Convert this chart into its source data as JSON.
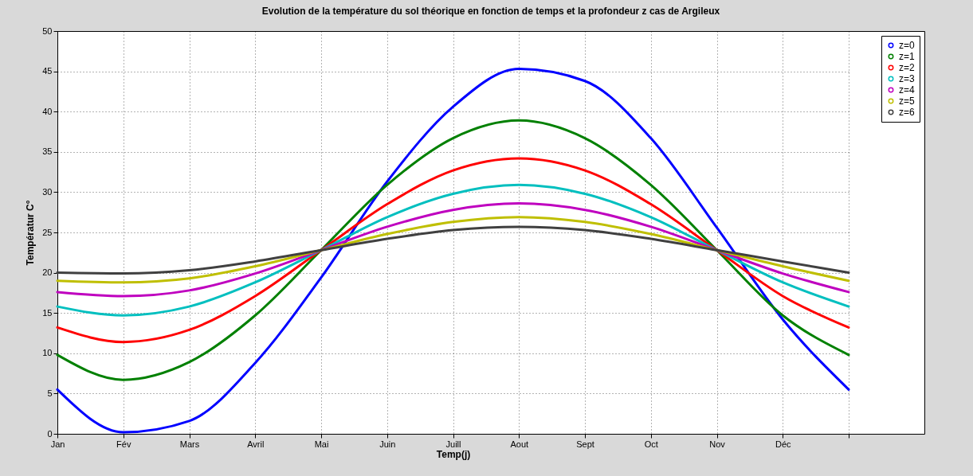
{
  "chart_data": {
    "type": "line",
    "title": "Evolution de la température du sol théorique en fonction de temps  et la profondeur  z cas de Argileux",
    "xlabel": "Temp(j)",
    "ylabel": "Températur C°",
    "categories": [
      "Jan",
      "Fév",
      "Mars",
      "Avril",
      "Mai",
      "Juin",
      "Juill",
      "Aout",
      "Sept",
      "Oct",
      "Nov",
      "Déc",
      null
    ],
    "ylim": [
      0,
      50
    ],
    "yticks": [
      0,
      5,
      10,
      15,
      20,
      25,
      30,
      35,
      40,
      45,
      50
    ],
    "grid": true,
    "legend": "top right",
    "line_style": "solid",
    "series": [
      {
        "name": "z=0",
        "color": "#0000ff",
        "values": [
          5.5,
          0.2,
          1.6,
          8.8,
          19.4,
          31.3,
          40.6,
          45.3,
          43.8,
          36.7,
          25.6,
          14.2,
          5.5
        ]
      },
      {
        "name": "z=1",
        "color": "#008000",
        "values": [
          9.8,
          6.7,
          8.9,
          14.7,
          22.8,
          30.9,
          36.7,
          38.9,
          36.7,
          30.9,
          22.8,
          14.7,
          9.8
        ]
      },
      {
        "name": "z=2",
        "color": "#ff0000",
        "values": [
          13.2,
          11.4,
          12.9,
          17.1,
          22.8,
          28.5,
          32.7,
          34.2,
          32.7,
          28.5,
          22.8,
          17.1,
          13.2
        ]
      },
      {
        "name": "z=3",
        "color": "#00bfbf",
        "values": [
          15.8,
          14.7,
          15.8,
          18.8,
          22.8,
          26.9,
          29.8,
          30.9,
          29.8,
          26.9,
          22.8,
          18.8,
          15.8
        ]
      },
      {
        "name": "z=4",
        "color": "#bf00bf",
        "values": [
          17.6,
          17.1,
          17.8,
          19.9,
          22.8,
          25.7,
          27.8,
          28.6,
          27.8,
          25.7,
          22.8,
          19.9,
          17.6
        ]
      },
      {
        "name": "z=5",
        "color": "#bfbf00",
        "values": [
          19.0,
          18.8,
          19.3,
          20.8,
          22.8,
          24.8,
          26.3,
          26.9,
          26.3,
          24.8,
          22.8,
          20.8,
          19.0
        ]
      },
      {
        "name": "z=6",
        "color": "#404040",
        "values": [
          20.0,
          19.9,
          20.3,
          21.4,
          22.8,
          24.2,
          25.3,
          25.7,
          25.3,
          24.2,
          22.8,
          21.4,
          20.0
        ]
      }
    ]
  }
}
